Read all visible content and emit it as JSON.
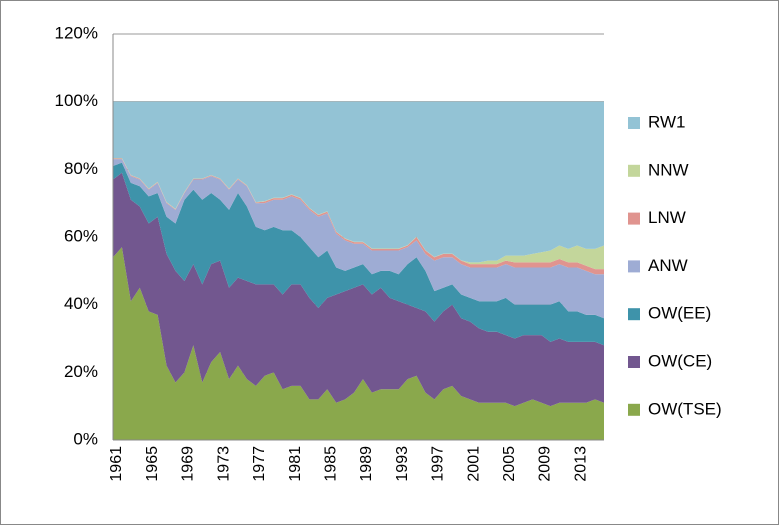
{
  "chart_data": {
    "type": "stacked-area-percent",
    "categories": [
      "1961",
      null,
      null,
      null,
      "1965",
      null,
      null,
      null,
      "1969",
      null,
      null,
      null,
      "1973",
      null,
      null,
      null,
      "1977",
      null,
      null,
      null,
      "1981",
      null,
      null,
      null,
      "1985",
      null,
      null,
      null,
      "1989",
      null,
      null,
      null,
      "1993",
      null,
      null,
      null,
      "1997",
      null,
      null,
      null,
      "2001",
      null,
      null,
      null,
      "2005",
      null,
      null,
      null,
      "2009",
      null,
      null,
      null,
      "2013",
      null,
      null,
      null
    ],
    "ylim": [
      0,
      120
    ],
    "yticks": [
      {
        "value": 0,
        "label": "0%"
      },
      {
        "value": 20,
        "label": "20%"
      },
      {
        "value": 40,
        "label": "40%"
      },
      {
        "value": 60,
        "label": "60%"
      },
      {
        "value": 80,
        "label": "80%"
      },
      {
        "value": 100,
        "label": "100%"
      },
      {
        "value": 120,
        "label": "120%"
      }
    ],
    "grid": true,
    "legend": "right",
    "series": [
      {
        "name": "OW(TSE)",
        "color": "#8aa84c",
        "values": [
          54,
          57,
          41,
          45,
          38,
          37,
          22,
          17,
          20,
          28,
          17,
          23,
          26,
          18,
          22,
          18,
          16,
          19,
          20,
          15,
          16,
          16,
          12,
          12,
          15,
          11,
          12,
          14,
          18,
          14,
          15,
          15,
          15,
          18,
          19,
          14,
          12,
          15,
          16,
          13,
          12,
          11,
          11,
          11,
          11,
          10,
          11,
          12,
          11,
          10,
          11,
          11,
          11,
          11,
          12,
          11
        ]
      },
      {
        "name": "OW(CE)",
        "color": "#72578f",
        "values": [
          23,
          22,
          30,
          24,
          26,
          29,
          33,
          33,
          27,
          24,
          29,
          29,
          27,
          27,
          26,
          29,
          30,
          27,
          26,
          28,
          30,
          30,
          30,
          27,
          27,
          32,
          32,
          31,
          28,
          29,
          30,
          27,
          26,
          22,
          20,
          24,
          23,
          23,
          24,
          23,
          23,
          22,
          21,
          21,
          20,
          20,
          20,
          19,
          20,
          19,
          19,
          18,
          18,
          18,
          17,
          17
        ]
      },
      {
        "name": "OW(EE)",
        "color": "#3e93aa",
        "values": [
          4,
          3,
          5,
          6,
          8,
          7,
          11,
          14,
          24,
          22,
          25,
          21,
          18,
          23,
          25,
          22,
          17,
          16,
          17,
          19,
          16,
          14,
          15,
          15,
          14,
          8,
          6,
          6,
          6,
          6,
          5,
          8,
          8,
          12,
          15,
          12,
          9,
          7,
          6,
          7,
          7,
          8,
          9,
          9,
          11,
          10,
          9,
          9,
          9,
          11,
          11,
          9,
          9,
          8,
          8,
          8
        ]
      },
      {
        "name": "ANW",
        "color": "#9eacd4",
        "values": [
          2,
          1,
          2,
          2,
          2,
          3,
          4,
          4,
          2,
          3,
          6,
          5,
          6,
          6,
          4,
          6,
          7,
          8,
          8,
          9,
          10,
          11,
          11,
          12,
          11,
          10,
          9,
          7,
          6,
          7,
          6,
          6,
          7,
          5,
          5,
          5,
          9,
          9,
          8,
          9,
          9,
          10,
          10,
          10,
          10,
          11,
          11,
          11,
          11,
          11,
          11,
          13,
          13,
          13,
          12,
          13
        ]
      },
      {
        "name": "LNW",
        "color": "#e0948f",
        "values": [
          0.2,
          0.2,
          0.2,
          0.2,
          0.2,
          0.2,
          0.2,
          0.2,
          0.2,
          0.2,
          0.2,
          0.2,
          0.2,
          0.2,
          0.2,
          0.2,
          0.2,
          0.5,
          0.5,
          0.5,
          0.5,
          0.5,
          0.5,
          0.5,
          0.5,
          0.5,
          0.5,
          0.5,
          0.5,
          0.5,
          0.5,
          0.5,
          0.5,
          0.5,
          1,
          1,
          1,
          1,
          1,
          1,
          1,
          1,
          1,
          1,
          1,
          1.5,
          1.5,
          1.5,
          1.5,
          1.5,
          1.5,
          1.5,
          1.5,
          1.5,
          1.5,
          1.5
        ]
      },
      {
        "name": "NNW",
        "color": "#c3d69b",
        "values": [
          0.1,
          0.1,
          0.1,
          0.1,
          0.1,
          0.1,
          0.1,
          0.1,
          0.1,
          0.1,
          0.1,
          0.1,
          0.1,
          0.1,
          0.1,
          0.1,
          0.1,
          0.1,
          0.1,
          0.1,
          0.1,
          0.1,
          0.1,
          0.1,
          0.1,
          0.1,
          0.1,
          0.1,
          0.1,
          0.1,
          0.1,
          0.1,
          0.1,
          0.1,
          0.1,
          0.1,
          0.1,
          0.1,
          0.1,
          0.1,
          0.5,
          0.5,
          1,
          1,
          1.5,
          2,
          2,
          2.5,
          3,
          3.5,
          4,
          4,
          5,
          5,
          6,
          7
        ]
      },
      {
        "name": "RW1",
        "color": "#93c3d5",
        "values": [
          16.7,
          16.7,
          21.7,
          22.7,
          25.7,
          23.7,
          29.7,
          31.7,
          26.7,
          22.7,
          22.7,
          21.7,
          22.7,
          25.7,
          22.7,
          24.7,
          29.7,
          29.4,
          28.4,
          28.4,
          27.4,
          28.4,
          31.4,
          33.4,
          32.4,
          38.4,
          40.4,
          41.4,
          41.4,
          43.4,
          43.4,
          43.4,
          43.4,
          42.4,
          39.9,
          43.9,
          45.9,
          44.9,
          44.9,
          46.9,
          47.5,
          47.5,
          47,
          47,
          45.5,
          45.5,
          45.5,
          45,
          44.5,
          44,
          42.5,
          43.5,
          42.5,
          43.5,
          43.5,
          42.5
        ]
      }
    ]
  }
}
